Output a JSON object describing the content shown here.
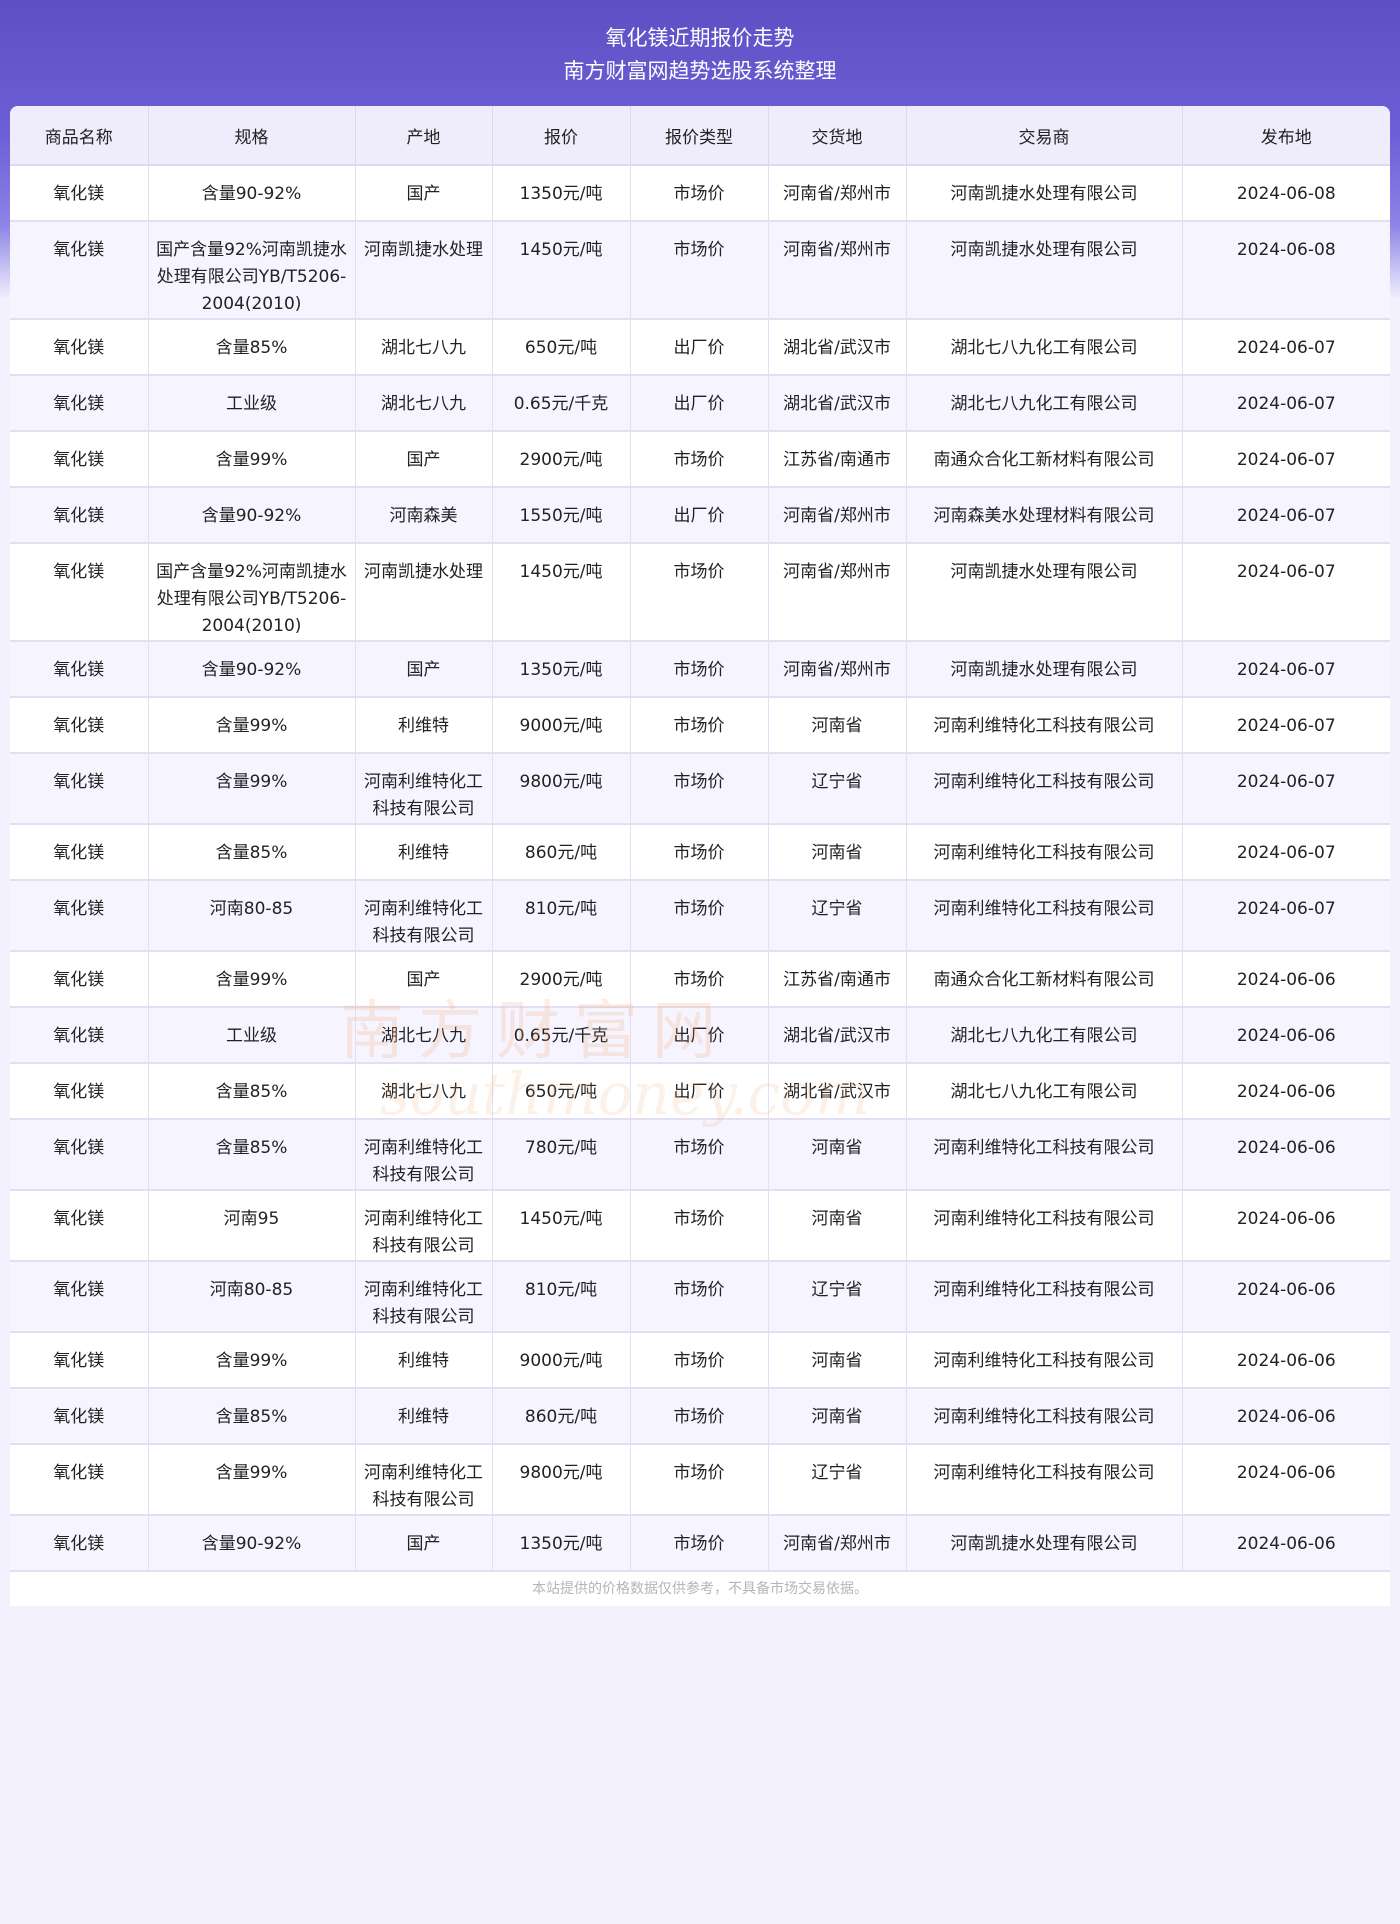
{
  "header": {
    "title": "氧化镁近期报价走势",
    "subtitle": "南方财富网趋势选股系统整理"
  },
  "columns": [
    "商品名称",
    "规格",
    "产地",
    "报价",
    "报价类型",
    "交货地",
    "交易商",
    "发布地"
  ],
  "rows": [
    [
      "氧化镁",
      "含量90-92%",
      "国产",
      "1350元/吨",
      "市场价",
      "河南省/郑州市",
      "河南凯捷水处理有限公司",
      "2024-06-08"
    ],
    [
      "氧化镁",
      "国产含量92%河南凯捷水处理有限公司YB/T5206-2004(2010)",
      "河南凯捷水处理",
      "1450元/吨",
      "市场价",
      "河南省/郑州市",
      "河南凯捷水处理有限公司",
      "2024-06-08"
    ],
    [
      "氧化镁",
      "含量85%",
      "湖北七八九",
      "650元/吨",
      "出厂价",
      "湖北省/武汉市",
      "湖北七八九化工有限公司",
      "2024-06-07"
    ],
    [
      "氧化镁",
      "工业级",
      "湖北七八九",
      "0.65元/千克",
      "出厂价",
      "湖北省/武汉市",
      "湖北七八九化工有限公司",
      "2024-06-07"
    ],
    [
      "氧化镁",
      "含量99%",
      "国产",
      "2900元/吨",
      "市场价",
      "江苏省/南通市",
      "南通众合化工新材料有限公司",
      "2024-06-07"
    ],
    [
      "氧化镁",
      "含量90-92%",
      "河南森美",
      "1550元/吨",
      "出厂价",
      "河南省/郑州市",
      "河南森美水处理材料有限公司",
      "2024-06-07"
    ],
    [
      "氧化镁",
      "国产含量92%河南凯捷水处理有限公司YB/T5206-2004(2010)",
      "河南凯捷水处理",
      "1450元/吨",
      "市场价",
      "河南省/郑州市",
      "河南凯捷水处理有限公司",
      "2024-06-07"
    ],
    [
      "氧化镁",
      "含量90-92%",
      "国产",
      "1350元/吨",
      "市场价",
      "河南省/郑州市",
      "河南凯捷水处理有限公司",
      "2024-06-07"
    ],
    [
      "氧化镁",
      "含量99%",
      "利维特",
      "9000元/吨",
      "市场价",
      "河南省",
      "河南利维特化工科技有限公司",
      "2024-06-07"
    ],
    [
      "氧化镁",
      "含量99%",
      "河南利维特化工科技有限公司",
      "9800元/吨",
      "市场价",
      "辽宁省",
      "河南利维特化工科技有限公司",
      "2024-06-07"
    ],
    [
      "氧化镁",
      "含量85%",
      "利维特",
      "860元/吨",
      "市场价",
      "河南省",
      "河南利维特化工科技有限公司",
      "2024-06-07"
    ],
    [
      "氧化镁",
      "河南80-85",
      "河南利维特化工科技有限公司",
      "810元/吨",
      "市场价",
      "辽宁省",
      "河南利维特化工科技有限公司",
      "2024-06-07"
    ],
    [
      "氧化镁",
      "含量99%",
      "国产",
      "2900元/吨",
      "市场价",
      "江苏省/南通市",
      "南通众合化工新材料有限公司",
      "2024-06-06"
    ],
    [
      "氧化镁",
      "工业级",
      "湖北七八九",
      "0.65元/千克",
      "出厂价",
      "湖北省/武汉市",
      "湖北七八九化工有限公司",
      "2024-06-06"
    ],
    [
      "氧化镁",
      "含量85%",
      "湖北七八九",
      "650元/吨",
      "出厂价",
      "湖北省/武汉市",
      "湖北七八九化工有限公司",
      "2024-06-06"
    ],
    [
      "氧化镁",
      "含量85%",
      "河南利维特化工科技有限公司",
      "780元/吨",
      "市场价",
      "河南省",
      "河南利维特化工科技有限公司",
      "2024-06-06"
    ],
    [
      "氧化镁",
      "河南95",
      "河南利维特化工科技有限公司",
      "1450元/吨",
      "市场价",
      "河南省",
      "河南利维特化工科技有限公司",
      "2024-06-06"
    ],
    [
      "氧化镁",
      "河南80-85",
      "河南利维特化工科技有限公司",
      "810元/吨",
      "市场价",
      "辽宁省",
      "河南利维特化工科技有限公司",
      "2024-06-06"
    ],
    [
      "氧化镁",
      "含量99%",
      "利维特",
      "9000元/吨",
      "市场价",
      "河南省",
      "河南利维特化工科技有限公司",
      "2024-06-06"
    ],
    [
      "氧化镁",
      "含量85%",
      "利维特",
      "860元/吨",
      "市场价",
      "河南省",
      "河南利维特化工科技有限公司",
      "2024-06-06"
    ],
    [
      "氧化镁",
      "含量99%",
      "河南利维特化工科技有限公司",
      "9800元/吨",
      "市场价",
      "辽宁省",
      "河南利维特化工科技有限公司",
      "2024-06-06"
    ],
    [
      "氧化镁",
      "含量90-92%",
      "国产",
      "1350元/吨",
      "市场价",
      "河南省/郑州市",
      "河南凯捷水处理有限公司",
      "2024-06-06"
    ]
  ],
  "footer": "本站提供的价格数据仅供参考，不具备市场交易依据。",
  "watermark": {
    "cn": "南方财富网",
    "en": "southmoney.com"
  },
  "colors": {
    "banner": "#6d5fd6",
    "header_row": "#efedfc",
    "alt_row": "#f6f4fe"
  }
}
